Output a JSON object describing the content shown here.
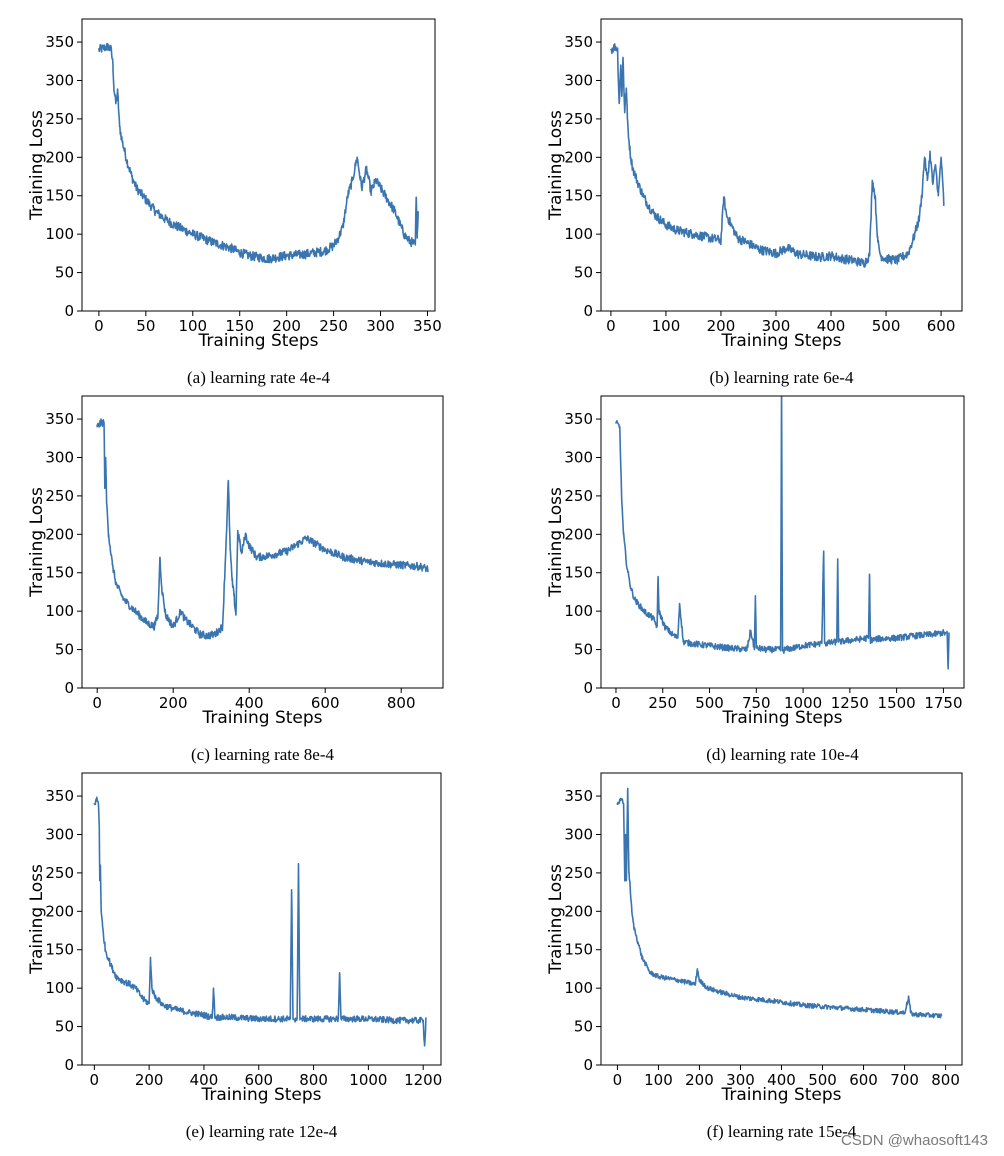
{
  "watermark": "CSDN @whaosoft143",
  "colors": {
    "line": "#3a75b0",
    "axis": "#000000"
  },
  "chart_data": [
    {
      "type": "line",
      "caption": "(a) learning rate 4e-4",
      "xlabel": "Training Steps",
      "ylabel": "Training Loss",
      "xlim": [
        -18,
        358
      ],
      "ylim": [
        0,
        380
      ],
      "xticks": [
        0,
        50,
        100,
        150,
        200,
        250,
        300,
        350
      ],
      "yticks": [
        0,
        50,
        100,
        150,
        200,
        250,
        300,
        350
      ],
      "series": [
        {
          "name": "loss",
          "x": [
            0,
            5,
            10,
            13,
            15,
            16,
            18,
            20,
            22,
            25,
            30,
            35,
            40,
            50,
            60,
            70,
            80,
            90,
            100,
            120,
            140,
            150,
            160,
            170,
            180,
            190,
            200,
            210,
            220,
            230,
            240,
            250,
            255,
            260,
            265,
            270,
            275,
            280,
            285,
            290,
            295,
            300,
            305,
            310,
            315,
            320,
            325,
            330,
            335,
            337,
            338,
            339,
            340
          ],
          "y": [
            340,
            342,
            344,
            340,
            320,
            290,
            270,
            285,
            240,
            220,
            195,
            175,
            160,
            145,
            130,
            120,
            112,
            106,
            100,
            90,
            82,
            76,
            72,
            70,
            68,
            70,
            72,
            73,
            74,
            76,
            78,
            85,
            95,
            110,
            150,
            170,
            200,
            160,
            185,
            155,
            170,
            160,
            150,
            140,
            130,
            115,
            100,
            92,
            88,
            86,
            148,
            95,
            130
          ],
          "noise": 6
        }
      ]
    },
    {
      "type": "line",
      "caption": "(b) learning rate 6e-4",
      "xlabel": "Training Steps",
      "ylabel": "Training Loss",
      "xlim": [
        -18,
        638
      ],
      "ylim": [
        0,
        380
      ],
      "xticks": [
        0,
        100,
        200,
        300,
        400,
        500,
        600
      ],
      "yticks": [
        0,
        50,
        100,
        150,
        200,
        250,
        300,
        350
      ],
      "series": [
        {
          "name": "loss",
          "x": [
            0,
            8,
            12,
            15,
            18,
            20,
            22,
            25,
            28,
            30,
            33,
            36,
            40,
            50,
            60,
            70,
            80,
            100,
            120,
            150,
            180,
            200,
            205,
            210,
            220,
            230,
            250,
            270,
            300,
            320,
            340,
            360,
            380,
            400,
            420,
            440,
            460,
            470,
            475,
            480,
            485,
            490,
            500,
            520,
            540,
            550,
            560,
            565,
            570,
            575,
            580,
            585,
            590,
            595,
            600,
            605
          ],
          "y": [
            340,
            344,
            342,
            270,
            320,
            280,
            330,
            260,
            290,
            250,
            220,
            200,
            185,
            165,
            148,
            135,
            125,
            112,
            105,
            100,
            95,
            92,
            148,
            125,
            110,
            95,
            88,
            80,
            75,
            82,
            74,
            72,
            70,
            72,
            68,
            66,
            62,
            72,
            170,
            150,
            90,
            72,
            68,
            66,
            75,
            95,
            120,
            150,
            200,
            170,
            205,
            165,
            190,
            150,
            200,
            140
          ],
          "noise": 6
        }
      ]
    },
    {
      "type": "line",
      "caption": "(c) learning rate 8e-4",
      "xlabel": "Training Steps",
      "ylabel": "Training Loss",
      "xlim": [
        -40,
        910
      ],
      "ylim": [
        0,
        380
      ],
      "xticks": [
        0,
        200,
        400,
        600,
        800
      ],
      "yticks": [
        0,
        50,
        100,
        150,
        200,
        250,
        300,
        350
      ],
      "series": [
        {
          "name": "loss",
          "x": [
            0,
            10,
            18,
            20,
            22,
            25,
            30,
            40,
            50,
            70,
            100,
            130,
            150,
            160,
            165,
            170,
            180,
            200,
            220,
            230,
            250,
            270,
            290,
            310,
            320,
            330,
            340,
            345,
            350,
            355,
            360,
            365,
            370,
            375,
            380,
            390,
            400,
            420,
            450,
            500,
            550,
            600,
            650,
            700,
            750,
            800,
            850,
            870
          ],
          "y": [
            340,
            345,
            346,
            260,
            300,
            240,
            200,
            160,
            135,
            115,
            100,
            85,
            80,
            95,
            170,
            130,
            95,
            80,
            100,
            90,
            80,
            70,
            68,
            70,
            75,
            80,
            200,
            270,
            180,
            140,
            120,
            95,
            205,
            190,
            175,
            200,
            185,
            170,
            172,
            178,
            195,
            180,
            170,
            165,
            162,
            160,
            158,
            155
          ],
          "noise": 5
        }
      ]
    },
    {
      "type": "line",
      "caption": "(d) learning rate 10e-4",
      "xlabel": "Training Steps",
      "ylabel": "Training Loss",
      "xlim": [
        -80,
        1860
      ],
      "ylim": [
        0,
        380
      ],
      "xticks": [
        0,
        250,
        500,
        750,
        1000,
        1250,
        1500,
        1750
      ],
      "yticks": [
        0,
        50,
        100,
        150,
        200,
        250,
        300,
        350
      ],
      "series": [
        {
          "name": "loss",
          "x": [
            0,
            20,
            30,
            40,
            60,
            80,
            100,
            150,
            200,
            220,
            225,
            230,
            260,
            300,
            330,
            340,
            360,
            400,
            500,
            600,
            700,
            720,
            740,
            745,
            750,
            800,
            880,
            885,
            890,
            895,
            900,
            950,
            1000,
            1100,
            1110,
            1115,
            1120,
            1180,
            1185,
            1190,
            1250,
            1350,
            1355,
            1360,
            1400,
            1500,
            1600,
            1700,
            1750,
            1770,
            1775,
            1780
          ],
          "y": [
            345,
            340,
            250,
            200,
            155,
            130,
            115,
            100,
            90,
            80,
            145,
            100,
            80,
            70,
            65,
            110,
            60,
            58,
            55,
            52,
            50,
            75,
            50,
            120,
            52,
            50,
            50,
            380,
            50,
            48,
            50,
            52,
            55,
            58,
            178,
            60,
            58,
            60,
            168,
            60,
            62,
            65,
            148,
            62,
            64,
            65,
            68,
            70,
            72,
            70,
            25,
            70
          ],
          "noise": 4
        }
      ]
    },
    {
      "type": "line",
      "caption": "(e) learning rate 12e-4",
      "xlabel": "Training Steps",
      "ylabel": "Training Loss",
      "xlim": [
        -45,
        1265
      ],
      "ylim": [
        0,
        380
      ],
      "xticks": [
        0,
        200,
        400,
        600,
        800,
        1000,
        1200
      ],
      "yticks": [
        0,
        50,
        100,
        150,
        200,
        250,
        300,
        350
      ],
      "series": [
        {
          "name": "loss",
          "x": [
            0,
            10,
            15,
            18,
            20,
            22,
            25,
            30,
            40,
            60,
            80,
            100,
            130,
            150,
            180,
            200,
            205,
            210,
            220,
            250,
            300,
            350,
            400,
            430,
            435,
            440,
            500,
            600,
            700,
            715,
            720,
            725,
            740,
            745,
            750,
            800,
            890,
            895,
            900,
            1000,
            1100,
            1200,
            1205,
            1210
          ],
          "y": [
            340,
            346,
            340,
            310,
            240,
            260,
            200,
            180,
            150,
            130,
            115,
            110,
            105,
            100,
            85,
            80,
            140,
            100,
            90,
            78,
            72,
            68,
            65,
            62,
            100,
            62,
            62,
            60,
            60,
            60,
            228,
            60,
            60,
            262,
            60,
            60,
            60,
            120,
            60,
            60,
            58,
            58,
            25,
            60
          ],
          "noise": 4
        }
      ]
    },
    {
      "type": "line",
      "caption": "(f) learning rate 15e-4",
      "xlabel": "Training Steps",
      "ylabel": "Training Loss",
      "xlim": [
        -40,
        840
      ],
      "ylim": [
        0,
        380
      ],
      "xticks": [
        0,
        100,
        200,
        300,
        400,
        500,
        600,
        700,
        800
      ],
      "yticks": [
        0,
        50,
        100,
        150,
        200,
        250,
        300,
        350
      ],
      "series": [
        {
          "name": "loss",
          "x": [
            0,
            10,
            15,
            18,
            20,
            22,
            25,
            28,
            30,
            35,
            40,
            50,
            60,
            70,
            80,
            100,
            150,
            190,
            195,
            200,
            220,
            250,
            300,
            350,
            400,
            450,
            500,
            550,
            600,
            650,
            700,
            710,
            715,
            720,
            750,
            790
          ],
          "y": [
            340,
            345,
            340,
            240,
            300,
            240,
            360,
            250,
            240,
            200,
            180,
            160,
            140,
            130,
            120,
            115,
            110,
            105,
            125,
            110,
            100,
            95,
            88,
            85,
            82,
            78,
            76,
            74,
            72,
            70,
            68,
            88,
            68,
            66,
            65,
            64
          ],
          "noise": 3
        }
      ]
    }
  ]
}
